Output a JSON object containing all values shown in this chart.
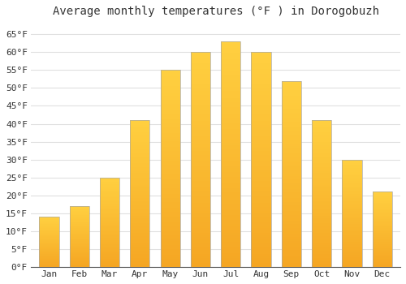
{
  "title": "Average monthly temperatures (°F ) in Dorogobuzh",
  "months": [
    "Jan",
    "Feb",
    "Mar",
    "Apr",
    "May",
    "Jun",
    "Jul",
    "Aug",
    "Sep",
    "Oct",
    "Nov",
    "Dec"
  ],
  "values": [
    14,
    17,
    25,
    41,
    55,
    60,
    63,
    60,
    52,
    41,
    30,
    21
  ],
  "bar_color_bottom": "#F5A623",
  "bar_color_top": "#FFD040",
  "bar_edge_color": "#AAAAAA",
  "background_color": "#ffffff",
  "plot_bg_color": "#ffffff",
  "grid_color": "#e0e0e0",
  "text_color": "#333333",
  "ylim": [
    0,
    68
  ],
  "yticks": [
    0,
    5,
    10,
    15,
    20,
    25,
    30,
    35,
    40,
    45,
    50,
    55,
    60,
    65
  ],
  "title_fontsize": 10,
  "tick_fontsize": 8,
  "bar_width": 0.65
}
